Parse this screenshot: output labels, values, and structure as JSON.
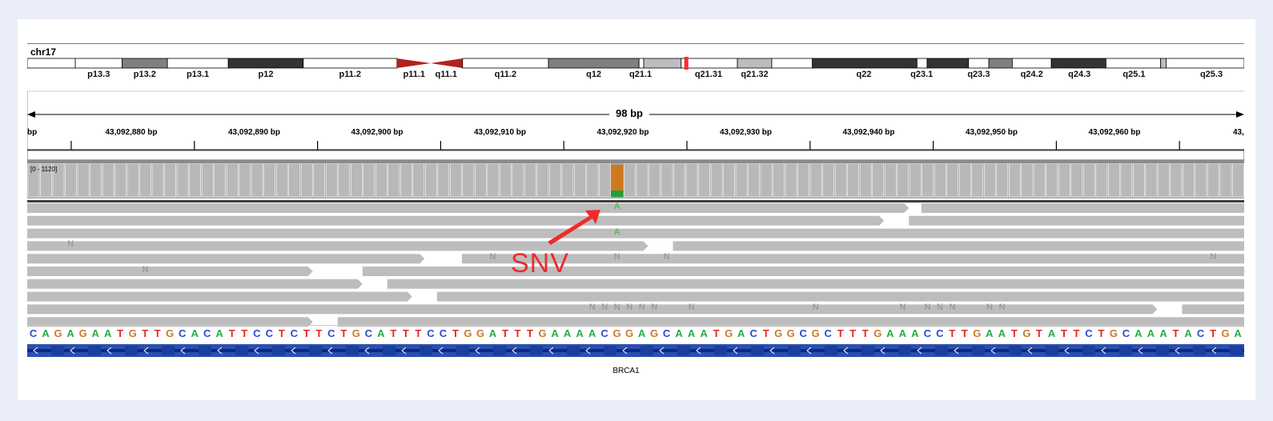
{
  "chromosome": {
    "name": "chr17",
    "bands": [
      {
        "name": "p13.3",
        "start": 0,
        "end": 60,
        "stain": "white",
        "label_at": 30
      },
      {
        "name": "p13.2",
        "start": 60,
        "end": 118,
        "stain": "gray",
        "label_at": 89
      },
      {
        "name": "p13.1",
        "start": 118,
        "end": 196,
        "stain": "white",
        "label_at": 157
      },
      {
        "name": "p12",
        "start": 196,
        "end": 292,
        "stain": "black",
        "label_at": 244
      },
      {
        "name": "p11.2",
        "start": 292,
        "end": 412,
        "stain": "white",
        "label_at": 352
      },
      {
        "name": "p11.1",
        "start": 412,
        "end": 455,
        "stain": "centromere-p",
        "label_at": 434
      },
      {
        "name": "q11.1",
        "start": 455,
        "end": 496,
        "stain": "centromere-q",
        "label_at": 475
      },
      {
        "name": "q11.2",
        "start": 496,
        "end": 606,
        "stain": "white",
        "label_at": 551
      },
      {
        "name": "q12",
        "start": 606,
        "end": 722,
        "stain": "gray",
        "label_at": 664
      },
      {
        "name": "q21.1",
        "start": 722,
        "end": 728,
        "stain": "white",
        "label_at": 724
      },
      {
        "name": "",
        "start": 728,
        "end": 776,
        "stain": "lightgray",
        "label_at": 752
      },
      {
        "name": "q21.31",
        "start": 776,
        "end": 848,
        "stain": "white",
        "label_at": 811
      },
      {
        "name": "q21.32",
        "start": 848,
        "end": 892,
        "stain": "lightgray",
        "label_at": 870
      },
      {
        "name": "",
        "start": 892,
        "end": 944,
        "stain": "white",
        "label_at": 918
      },
      {
        "name": "q22",
        "start": 944,
        "end": 1078,
        "stain": "black",
        "label_at": 1010
      },
      {
        "name": "",
        "start": 1078,
        "end": 1091,
        "stain": "white",
        "label_at": 1084
      },
      {
        "name": "q23.1",
        "start": 1091,
        "end": 1144,
        "stain": "black",
        "label_at": 1084
      },
      {
        "name": "",
        "start": 1144,
        "end": 1170,
        "stain": "white",
        "label_at": 1157
      },
      {
        "name": "q23.3",
        "start": 1170,
        "end": 1200,
        "stain": "gray",
        "label_at": 1157
      },
      {
        "name": "q24.2",
        "start": 1200,
        "end": 1250,
        "stain": "white",
        "label_at": 1225
      },
      {
        "name": "q24.3",
        "start": 1250,
        "end": 1320,
        "stain": "black",
        "label_at": 1286
      },
      {
        "name": "q25.1",
        "start": 1320,
        "end": 1390,
        "stain": "white",
        "label_at": 1356
      },
      {
        "name": "",
        "start": 1390,
        "end": 1397,
        "stain": "lightgray",
        "label_at": 1393
      },
      {
        "name": "q25.3",
        "start": 1397,
        "end": 1497,
        "stain": "white",
        "label_at": 1455
      }
    ],
    "current_position_marker": 780
  },
  "span_label": "98 bp",
  "ruler": {
    "left_clip": "bp",
    "right_clip": "43,",
    "labels": [
      {
        "text": "43,092,880 bp",
        "position": 43092880
      },
      {
        "text": "43,092,890 bp",
        "position": 43092890
      },
      {
        "text": "43,092,900 bp",
        "position": 43092900
      },
      {
        "text": "43,092,910 bp",
        "position": 43092910
      },
      {
        "text": "43,092,920 bp",
        "position": 43092920
      },
      {
        "text": "43,092,930 bp",
        "position": 43092930
      },
      {
        "text": "43,092,940 bp",
        "position": 43092940
      },
      {
        "text": "43,092,950 bp",
        "position": 43092950
      },
      {
        "text": "43,092,960 bp",
        "position": 43092960
      }
    ]
  },
  "coverage": {
    "range_label": "[0 - 1120]",
    "snv_index": 47,
    "snv_ref_fraction": 0.8,
    "colors": {
      "bar": "#a9a9a9",
      "ref": "#d1781e",
      "alt": "#1e9e3a"
    }
  },
  "reads": {
    "rows": [
      [
        [
          0,
          71
        ],
        [
          72,
          98
        ]
      ],
      [
        [
          0,
          69
        ],
        [
          71,
          98
        ]
      ],
      [
        [
          0,
          98
        ]
      ],
      [
        [
          0,
          50
        ],
        [
          52,
          98
        ]
      ],
      [
        [
          0,
          32
        ],
        [
          35,
          98
        ]
      ],
      [
        [
          0,
          23
        ],
        [
          27,
          98
        ]
      ],
      [
        [
          0,
          27
        ],
        [
          29,
          98
        ]
      ],
      [
        [
          0,
          31
        ],
        [
          33,
          98
        ]
      ],
      [
        [
          0,
          91
        ],
        [
          93,
          98
        ]
      ],
      [
        [
          0,
          23
        ],
        [
          25,
          98
        ]
      ]
    ],
    "mismatches": [
      {
        "row": 0,
        "index": 47,
        "letter": "A"
      },
      {
        "row": 2,
        "index": 47,
        "letter": "A"
      }
    ],
    "n_marks": [
      {
        "row": 3,
        "index": 3
      },
      {
        "row": 4,
        "index": 37
      },
      {
        "row": 4,
        "index": 47
      },
      {
        "row": 4,
        "index": 51
      },
      {
        "row": 4,
        "index": 95
      },
      {
        "row": 5,
        "index": 9
      },
      {
        "row": 8,
        "index": 45
      },
      {
        "row": 8,
        "index": 46
      },
      {
        "row": 8,
        "index": 47
      },
      {
        "row": 8,
        "index": 48
      },
      {
        "row": 8,
        "index": 49
      },
      {
        "row": 8,
        "index": 50
      },
      {
        "row": 8,
        "index": 53
      },
      {
        "row": 8,
        "index": 63
      },
      {
        "row": 8,
        "index": 70
      },
      {
        "row": 8,
        "index": 72
      },
      {
        "row": 8,
        "index": 73
      },
      {
        "row": 8,
        "index": 74
      },
      {
        "row": 8,
        "index": 77
      },
      {
        "row": 8,
        "index": 78
      }
    ]
  },
  "annotation": {
    "label": "SNV",
    "color": "#ee2b2b"
  },
  "reference_sequence": "CAGAGAATGTTGCACATTCCTCTTCTGCATTTCCTGGATTTGAAAACGGAGCAAATGACTGGCGCTTTGAAACCTTGAATGTATTCTGCAAATACTGA",
  "base_colors": {
    "A": "#2aa84a",
    "C": "#2c4ad0",
    "G": "#d1781e",
    "T": "#e0281e"
  },
  "gene": {
    "name": "BRCA1",
    "strand": "minus",
    "colors": {
      "exon": "#2b4fae",
      "line": "#0a2a8a"
    }
  }
}
